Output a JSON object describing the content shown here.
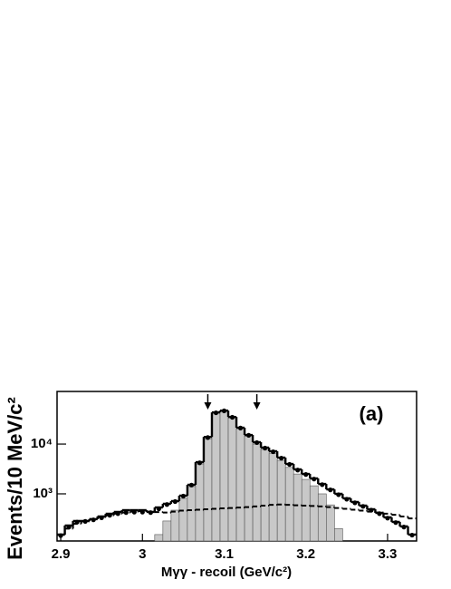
{
  "chart_data": {
    "type": "histogram",
    "annotation": "(a)",
    "xlabel": "Mγγ - recoil (GeV/c²)",
    "ylabel": "Events/10 MeV/c²",
    "bins": [
      2.895,
      2.905,
      2.915,
      2.925,
      2.935,
      2.945,
      2.955,
      2.965,
      2.975,
      2.985,
      2.995,
      3.005,
      3.015,
      3.025,
      3.035,
      3.045,
      3.055,
      3.065,
      3.075,
      3.085,
      3.095,
      3.105,
      3.115,
      3.125,
      3.135,
      3.145,
      3.155,
      3.165,
      3.175,
      3.185,
      3.195,
      3.205,
      3.215,
      3.225,
      3.235,
      3.245,
      3.255,
      3.265,
      3.275,
      3.285,
      3.295,
      3.305,
      3.315,
      3.325,
      3.335
    ],
    "series": [
      {
        "style": "filled",
        "color": "#c8c8c8",
        "values": [
          null,
          null,
          null,
          null,
          null,
          null,
          null,
          null,
          null,
          null,
          null,
          null,
          152,
          285,
          470,
          811,
          1400,
          3980,
          12800,
          42000,
          46000,
          34000,
          20500,
          14500,
          10000,
          7800,
          6400,
          4700,
          3400,
          2500,
          1950,
          1450,
          1000,
          600,
          200,
          null,
          null,
          null,
          null,
          null,
          null,
          null,
          null,
          null
        ]
      },
      {
        "style": "dashed",
        "color": "#000000",
        "values": [
          150,
          200,
          250,
          280,
          310,
          340,
          370,
          400,
          420,
          440,
          450,
          440,
          430,
          420,
          440,
          460,
          470,
          480,
          490,
          500,
          510,
          520,
          530,
          540,
          560,
          580,
          600,
          610,
          600,
          590,
          580,
          570,
          560,
          540,
          520,
          500,
          480,
          460,
          440,
          420,
          400,
          380,
          350,
          320
        ]
      },
      {
        "style": "step",
        "color": "#000000",
        "values": [
          152,
          231,
          285,
          285,
          310,
          351,
          398,
          433,
          470,
          470,
          470,
          433,
          533,
          631,
          715,
          920,
          1520,
          4330,
          13900,
          43300,
          47000,
          35000,
          21300,
          15200,
          10900,
          8490,
          7170,
          5340,
          3980,
          3100,
          2510,
          2040,
          1580,
          1230,
          1000,
          811,
          686,
          580,
          490,
          415,
          337,
          273,
          222,
          152
        ]
      },
      {
        "style": "points",
        "color": "#000000",
        "values": [
          145,
          215,
          270,
          280,
          300,
          330,
          370,
          400,
          420,
          430,
          430,
          420,
          500,
          610,
          700,
          900,
          1500,
          4200,
          13500,
          42500,
          46500,
          34500,
          21000,
          15000,
          10700,
          8300,
          7000,
          5200,
          3900,
          3000,
          2450,
          1980,
          1530,
          1200,
          960,
          780,
          660,
          560,
          470,
          400,
          325,
          265,
          215,
          148
        ]
      }
    ],
    "xlim": [
      2.8955,
      3.3355
    ],
    "xticks": [
      2.9,
      3,
      3.1,
      3.2,
      3.3
    ],
    "ylim": [
      113,
      114000
    ],
    "log_y": true,
    "yticks": [
      {
        "value": 1000,
        "label": "10³"
      },
      {
        "value": 10000,
        "label": "10⁴"
      }
    ],
    "arrows": [
      3.08,
      3.14
    ]
  }
}
